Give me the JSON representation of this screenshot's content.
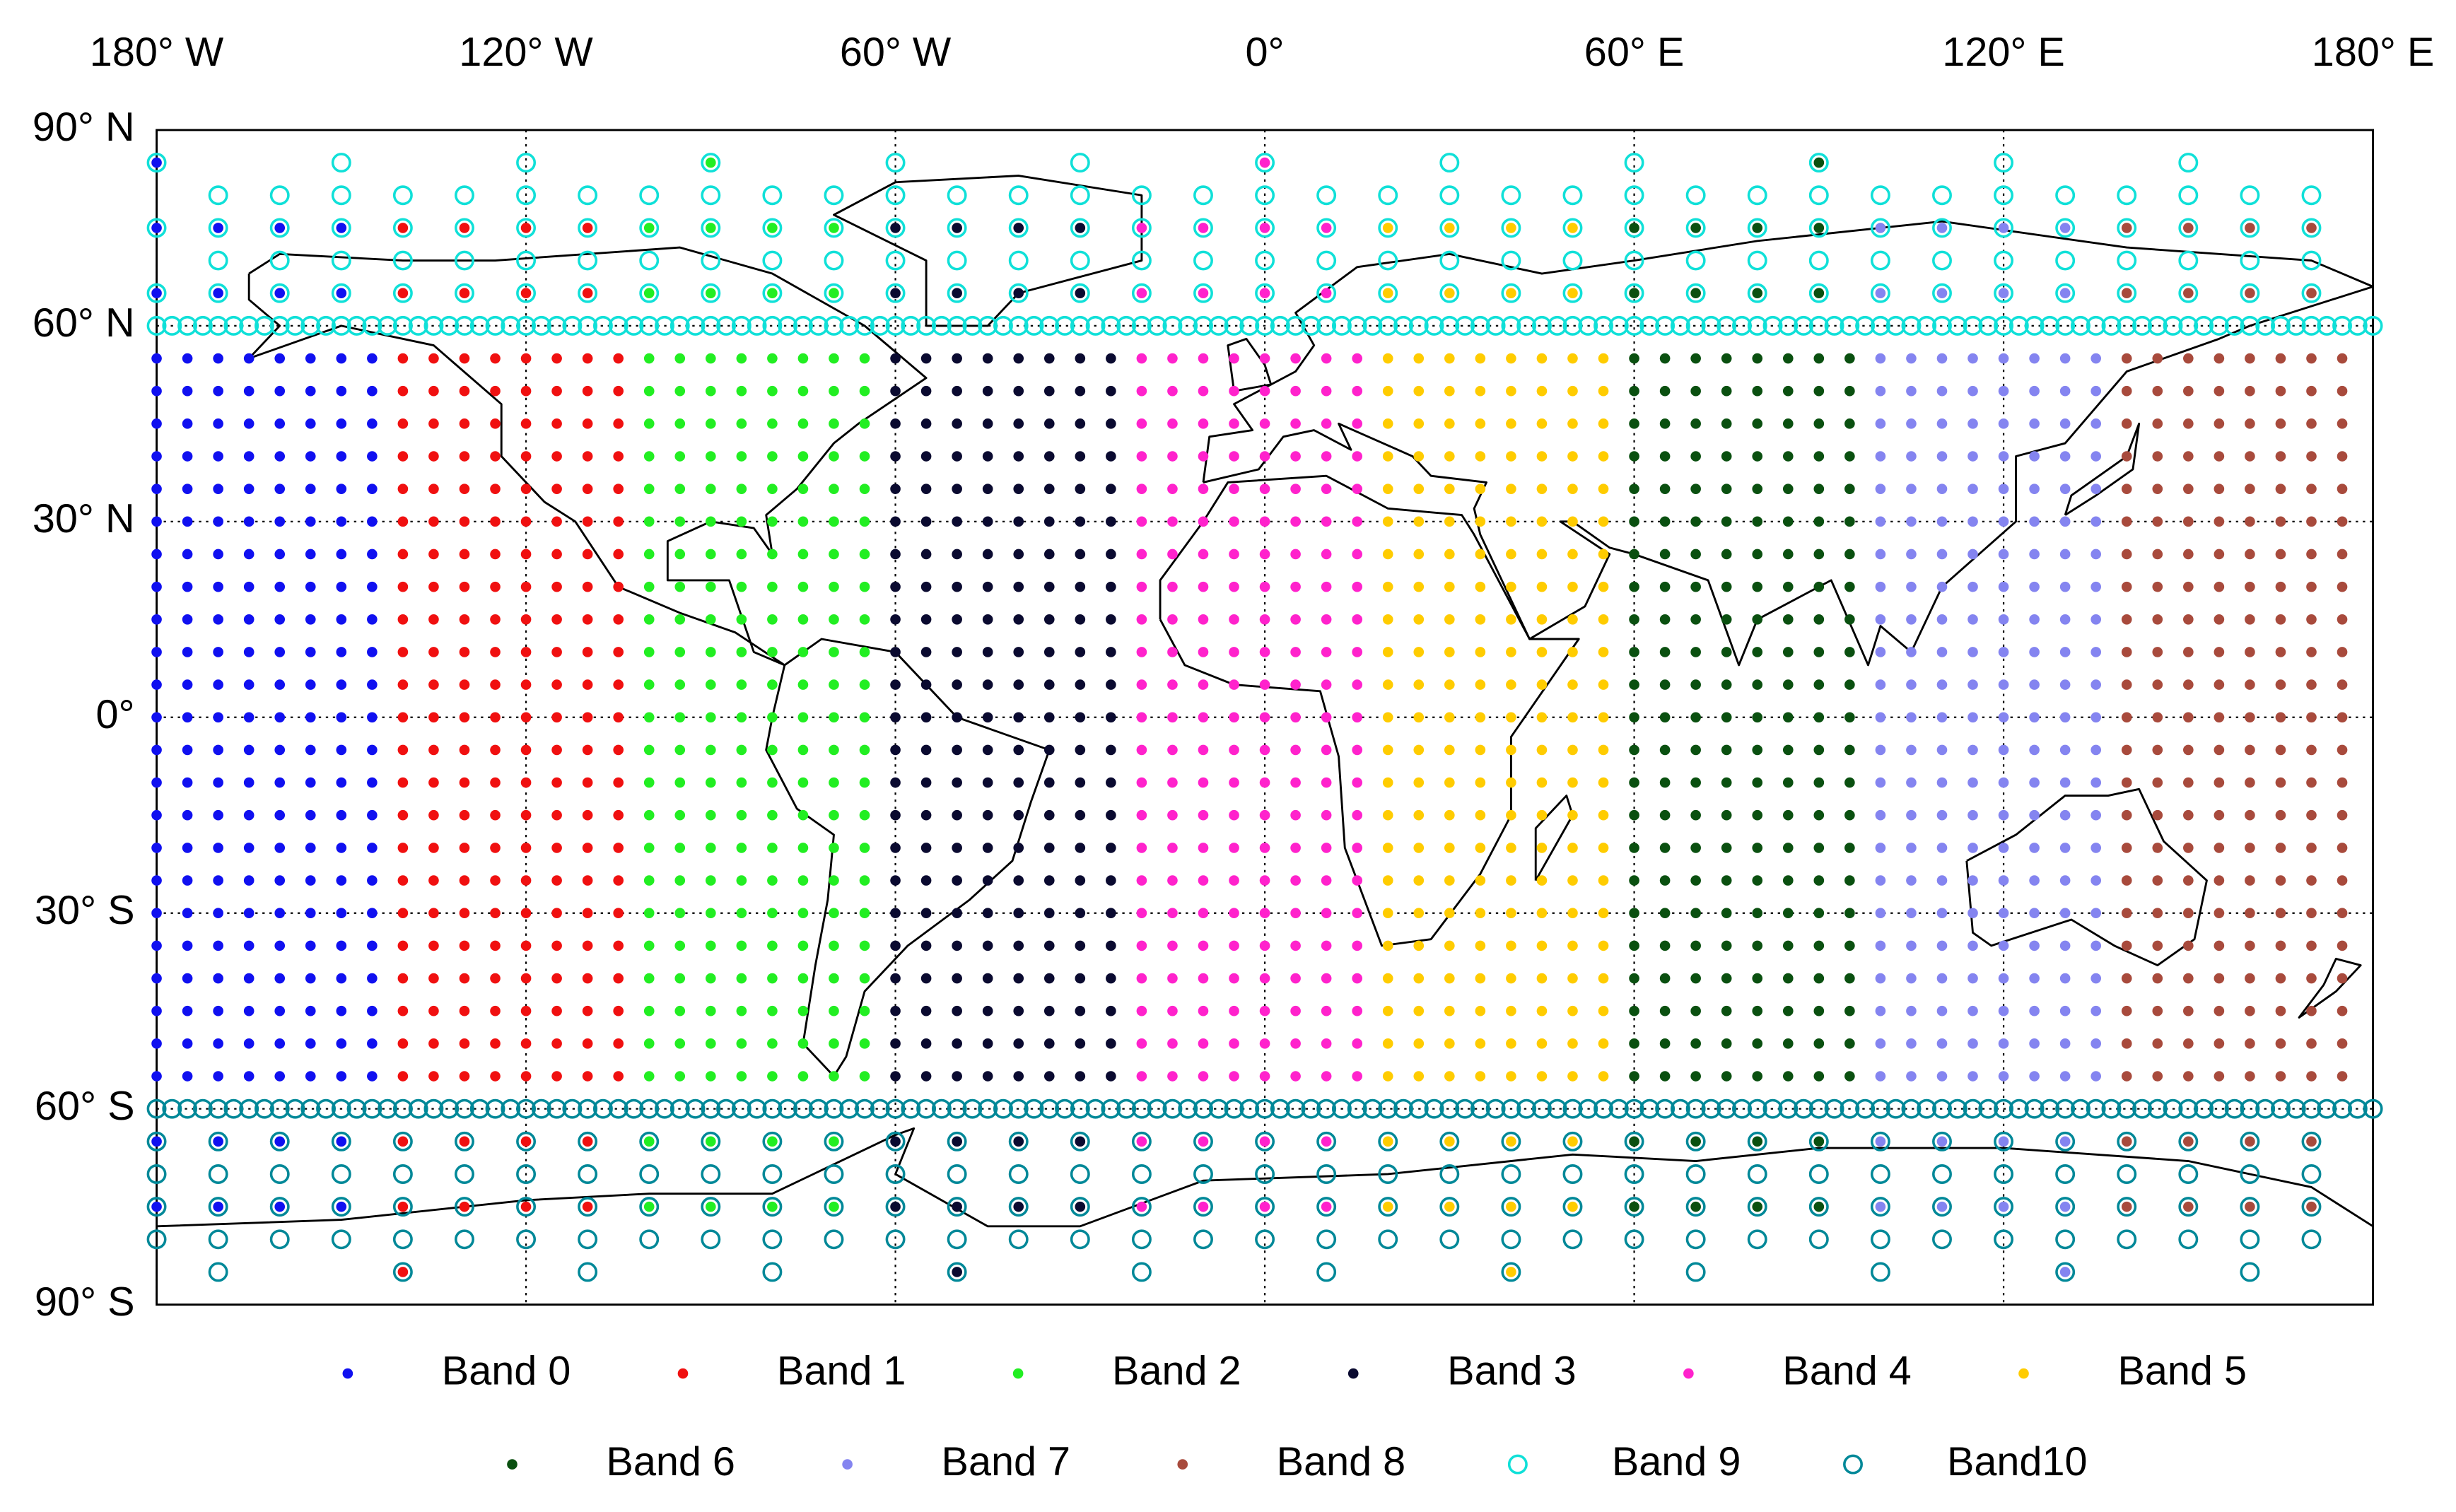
{
  "chart_data": {
    "type": "scatter",
    "xlim": [
      -180,
      180
    ],
    "ylim": [
      -90,
      90
    ],
    "grid": true,
    "xticks": [
      {
        "value": -180,
        "label": "180° W"
      },
      {
        "value": -120,
        "label": "120° W"
      },
      {
        "value": -60,
        "label": "60° W"
      },
      {
        "value": 0,
        "label": "0°"
      },
      {
        "value": 60,
        "label": "60° E"
      },
      {
        "value": 120,
        "label": "120° E"
      },
      {
        "value": 180,
        "label": "180° E"
      }
    ],
    "yticks": [
      {
        "value": 90,
        "label": "90° N"
      },
      {
        "value": 60,
        "label": "60° N"
      },
      {
        "value": 30,
        "label": "30° N"
      },
      {
        "value": 0,
        "label": "0°"
      },
      {
        "value": -30,
        "label": "30° S"
      },
      {
        "value": -60,
        "label": "60° S"
      },
      {
        "value": -90,
        "label": "90° S"
      }
    ],
    "legend": "bottom",
    "series": [
      {
        "name": "Band 0",
        "color": "#1010f0",
        "marker": "dot",
        "grids": [
          {
            "lat_start": 55,
            "lat_end": -55,
            "lat_step": -5,
            "lon_start": -180,
            "lon_end": -145,
            "lon_step": 5
          },
          {
            "lat_start": 75,
            "lat_end": 65,
            "lat_step": -10,
            "lon_start": -180,
            "lon_end": -150,
            "lon_step": 10
          },
          {
            "lat_start": -65,
            "lat_end": -75,
            "lat_step": -10,
            "lon_start": -180,
            "lon_end": -150,
            "lon_step": 10
          },
          {
            "lat_start": 85,
            "lat_end": 85,
            "lat_step": -10,
            "lon_start": -180,
            "lon_end": -180,
            "lon_step": 10
          }
        ]
      },
      {
        "name": "Band 1",
        "color": "#f01010",
        "marker": "dot",
        "grids": [
          {
            "lat_start": 55,
            "lat_end": -55,
            "lat_step": -5,
            "lon_start": -140,
            "lon_end": -105,
            "lon_step": 5
          },
          {
            "lat_start": 75,
            "lat_end": 65,
            "lat_step": -10,
            "lon_start": -140,
            "lon_end": -110,
            "lon_step": 10
          },
          {
            "lat_start": -65,
            "lat_end": -75,
            "lat_step": -10,
            "lon_start": -140,
            "lon_end": -110,
            "lon_step": 10
          },
          {
            "lat_start": -85,
            "lat_end": -85,
            "lat_step": -10,
            "lon_start": -140,
            "lon_end": -140,
            "lon_step": 10
          }
        ]
      },
      {
        "name": "Band 2",
        "color": "#22ee22",
        "marker": "dot",
        "grids": [
          {
            "lat_start": 55,
            "lat_end": -55,
            "lat_step": -5,
            "lon_start": -100,
            "lon_end": -65,
            "lon_step": 5
          },
          {
            "lat_start": 75,
            "lat_end": 65,
            "lat_step": -10,
            "lon_start": -100,
            "lon_end": -70,
            "lon_step": 10
          },
          {
            "lat_start": -65,
            "lat_end": -75,
            "lat_step": -10,
            "lon_start": -100,
            "lon_end": -70,
            "lon_step": 10
          },
          {
            "lat_start": 85,
            "lat_end": 85,
            "lat_step": -10,
            "lon_start": -90,
            "lon_end": -90,
            "lon_step": 10
          }
        ]
      },
      {
        "name": "Band 3",
        "color": "#0a0a30",
        "marker": "dot",
        "grids": [
          {
            "lat_start": 55,
            "lat_end": -55,
            "lat_step": -5,
            "lon_start": -60,
            "lon_end": -25,
            "lon_step": 5
          },
          {
            "lat_start": 75,
            "lat_end": 65,
            "lat_step": -10,
            "lon_start": -60,
            "lon_end": -30,
            "lon_step": 10
          },
          {
            "lat_start": -65,
            "lat_end": -75,
            "lat_step": -10,
            "lon_start": -60,
            "lon_end": -30,
            "lon_step": 10
          },
          {
            "lat_start": -85,
            "lat_end": -85,
            "lat_step": -10,
            "lon_start": -50,
            "lon_end": -50,
            "lon_step": 10
          }
        ]
      },
      {
        "name": "Band 4",
        "color": "#ff22cc",
        "marker": "dot",
        "grids": [
          {
            "lat_start": 55,
            "lat_end": -55,
            "lat_step": -5,
            "lon_start": -20,
            "lon_end": 15,
            "lon_step": 5
          },
          {
            "lat_start": 75,
            "lat_end": 65,
            "lat_step": -10,
            "lon_start": -20,
            "lon_end": 10,
            "lon_step": 10
          },
          {
            "lat_start": -65,
            "lat_end": -75,
            "lat_step": -10,
            "lon_start": -20,
            "lon_end": 10,
            "lon_step": 10
          },
          {
            "lat_start": 85,
            "lat_end": 85,
            "lat_step": -10,
            "lon_start": 0,
            "lon_end": 0,
            "lon_step": 10
          }
        ]
      },
      {
        "name": "Band 5",
        "color": "#ffcc00",
        "marker": "dot",
        "grids": [
          {
            "lat_start": 55,
            "lat_end": -55,
            "lat_step": -5,
            "lon_start": 20,
            "lon_end": 55,
            "lon_step": 5
          },
          {
            "lat_start": 75,
            "lat_end": 65,
            "lat_step": -10,
            "lon_start": 20,
            "lon_end": 50,
            "lon_step": 10
          },
          {
            "lat_start": -65,
            "lat_end": -75,
            "lat_step": -10,
            "lon_start": 20,
            "lon_end": 50,
            "lon_step": 10
          },
          {
            "lat_start": -85,
            "lat_end": -85,
            "lat_step": -10,
            "lon_start": 40,
            "lon_end": 40,
            "lon_step": 10
          }
        ]
      },
      {
        "name": "Band 6",
        "color": "#0a5010",
        "marker": "dot",
        "grids": [
          {
            "lat_start": 55,
            "lat_end": -55,
            "lat_step": -5,
            "lon_start": 60,
            "lon_end": 95,
            "lon_step": 5
          },
          {
            "lat_start": 75,
            "lat_end": 65,
            "lat_step": -10,
            "lon_start": 60,
            "lon_end": 90,
            "lon_step": 10
          },
          {
            "lat_start": -65,
            "lat_end": -75,
            "lat_step": -10,
            "lon_start": 60,
            "lon_end": 90,
            "lon_step": 10
          },
          {
            "lat_start": 85,
            "lat_end": 85,
            "lat_step": -10,
            "lon_start": 90,
            "lon_end": 90,
            "lon_step": 10
          }
        ]
      },
      {
        "name": "Band 7",
        "color": "#8484f0",
        "marker": "dot",
        "grids": [
          {
            "lat_start": 55,
            "lat_end": -55,
            "lat_step": -5,
            "lon_start": 100,
            "lon_end": 135,
            "lon_step": 5
          },
          {
            "lat_start": 75,
            "lat_end": 65,
            "lat_step": -10,
            "lon_start": 100,
            "lon_end": 130,
            "lon_step": 10
          },
          {
            "lat_start": -65,
            "lat_end": -75,
            "lat_step": -10,
            "lon_start": 100,
            "lon_end": 130,
            "lon_step": 10
          },
          {
            "lat_start": -85,
            "lat_end": -85,
            "lat_step": -10,
            "lon_start": 130,
            "lon_end": 130,
            "lon_step": 10
          }
        ]
      },
      {
        "name": "Band 8",
        "color": "#a84a3c",
        "marker": "dot",
        "grids": [
          {
            "lat_start": 55,
            "lat_end": -55,
            "lat_step": -5,
            "lon_start": 140,
            "lon_end": 175,
            "lon_step": 5
          },
          {
            "lat_start": 75,
            "lat_end": 65,
            "lat_step": -10,
            "lon_start": 140,
            "lon_end": 170,
            "lon_step": 10
          },
          {
            "lat_start": -65,
            "lat_end": -75,
            "lat_step": -10,
            "lon_start": 140,
            "lon_end": 170,
            "lon_step": 10
          }
        ]
      },
      {
        "name": "Band 9",
        "color": "#10e0d8",
        "marker": "circle",
        "grids": [
          {
            "lat_start": 60,
            "lat_end": 60,
            "lat_step": 5,
            "lon_start": -180,
            "lon_end": 180,
            "lon_step": 2.5
          },
          {
            "lat_start": 65,
            "lat_end": 75,
            "lat_step": 10,
            "lon_start": -180,
            "lon_end": 170,
            "lon_step": 10
          },
          {
            "lat_start": 70,
            "lat_end": 80,
            "lat_step": 10,
            "lon_start": -170,
            "lon_end": 170,
            "lon_step": 10
          },
          {
            "lat_start": 85,
            "lat_end": 85,
            "lat_step": 5,
            "lon_start": -180,
            "lon_end": 150,
            "lon_step": 30
          }
        ]
      },
      {
        "name": "Band10",
        "color": "#008898",
        "marker": "circle",
        "grids": [
          {
            "lat_start": -60,
            "lat_end": -60,
            "lat_step": -5,
            "lon_start": -180,
            "lon_end": 180,
            "lon_step": 2.5
          },
          {
            "lat_start": -65,
            "lat_end": -80,
            "lat_step": -5,
            "lon_start": -180,
            "lon_end": 170,
            "lon_step": 10
          },
          {
            "lat_start": -85,
            "lat_end": -85,
            "lat_step": -5,
            "lon_start": -170,
            "lon_end": 160,
            "lon_step": 30
          }
        ]
      }
    ]
  }
}
